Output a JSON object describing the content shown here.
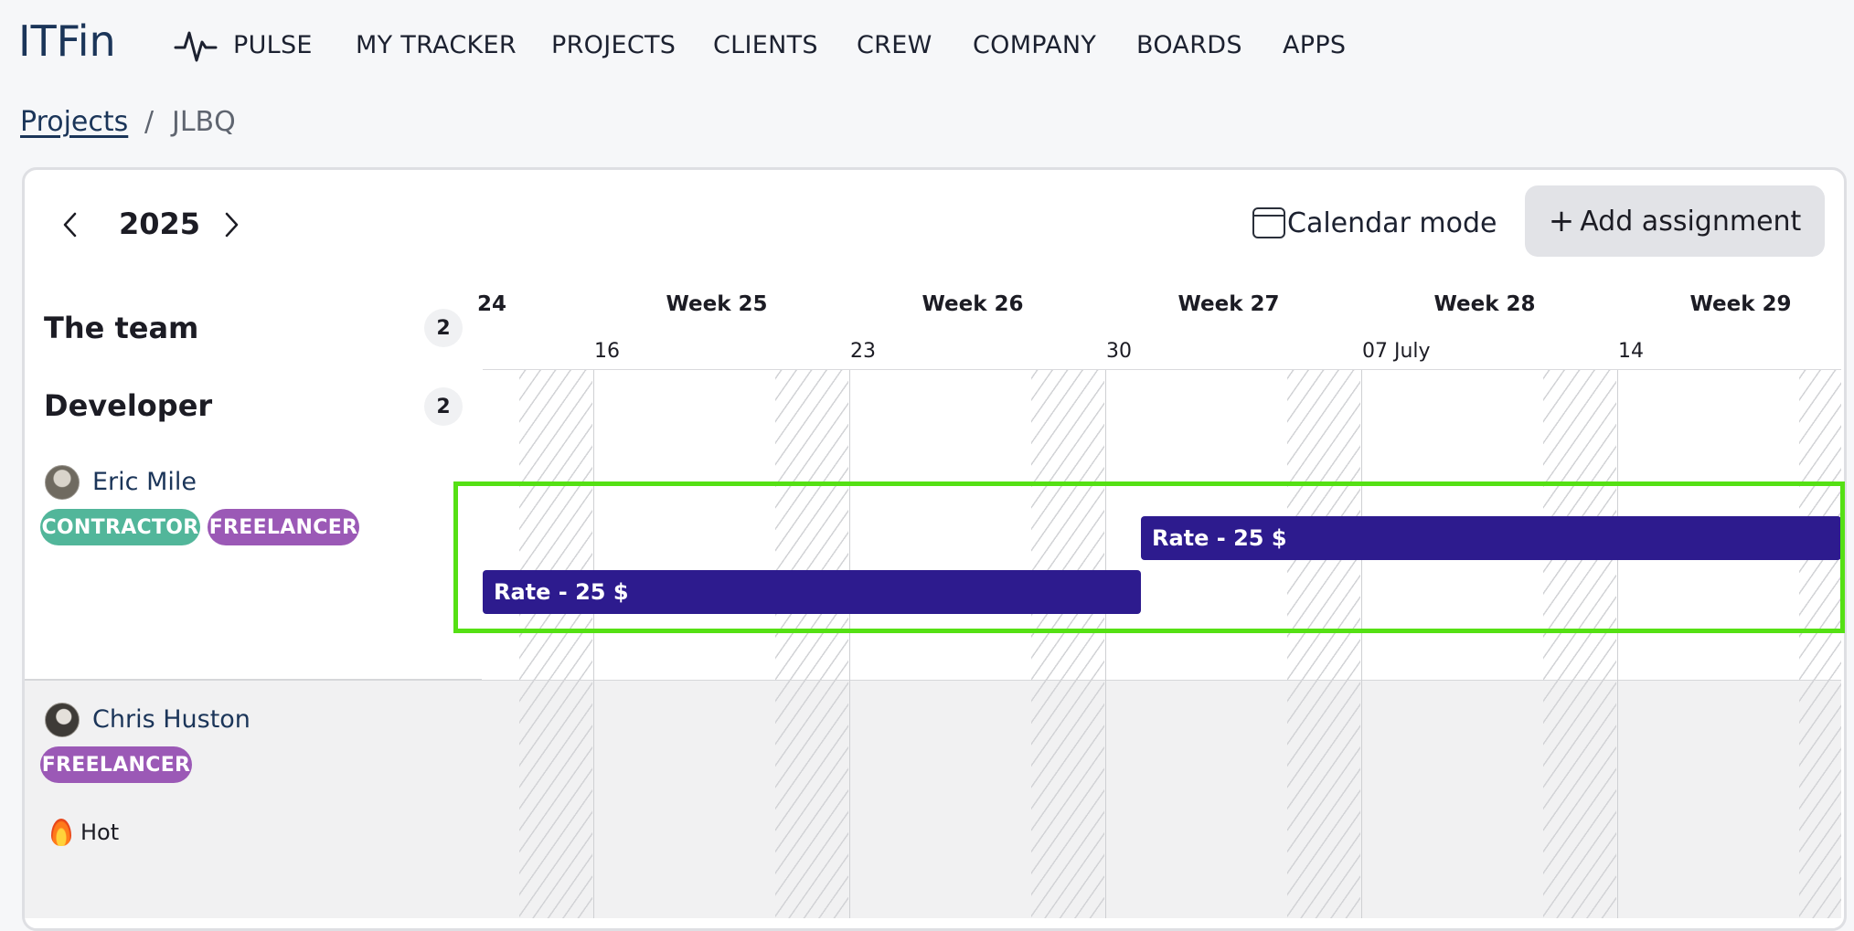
{
  "app": {
    "logo": "ITFin"
  },
  "nav": {
    "items": [
      "PULSE",
      "MY TRACKER",
      "PROJECTS",
      "CLIENTS",
      "CREW",
      "COMPANY",
      "BOARDS",
      "APPS"
    ]
  },
  "breadcrumb": {
    "parent": "Projects",
    "separator": "/",
    "current": "JLBQ"
  },
  "toolbar": {
    "year": "2025",
    "calendar_mode_label": "Calendar mode",
    "add_assignment_label": "Add assignment",
    "add_assignment_icon": "+"
  },
  "team": {
    "title": "The team",
    "count": "2",
    "role": "Developer",
    "role_count": "2",
    "members": [
      {
        "name": "Eric Mile",
        "tags": [
          "CONTRACTOR",
          "FREELANCER"
        ]
      },
      {
        "name": "Chris Huston",
        "tags": [
          "FREELANCER"
        ],
        "status": "Hot"
      }
    ]
  },
  "timeline": {
    "weeks": [
      "24",
      "Week 25",
      "Week 26",
      "Week 27",
      "Week 28",
      "Week 29"
    ],
    "dates": [
      "16",
      "23",
      "30",
      "07 July",
      "14"
    ]
  },
  "assignments": [
    {
      "label": "Rate - 25 $",
      "member": "Eric Mile",
      "start": "30",
      "end": "open"
    },
    {
      "label": "Rate - 25 $",
      "member": "Eric Mile",
      "start": "24",
      "end": "30"
    }
  ],
  "colors": {
    "bar": "#2d1b8e",
    "highlight": "#55e014",
    "contractor": "#52b69a",
    "freelancer": "#9b59b6",
    "logo": "#1b3559"
  }
}
